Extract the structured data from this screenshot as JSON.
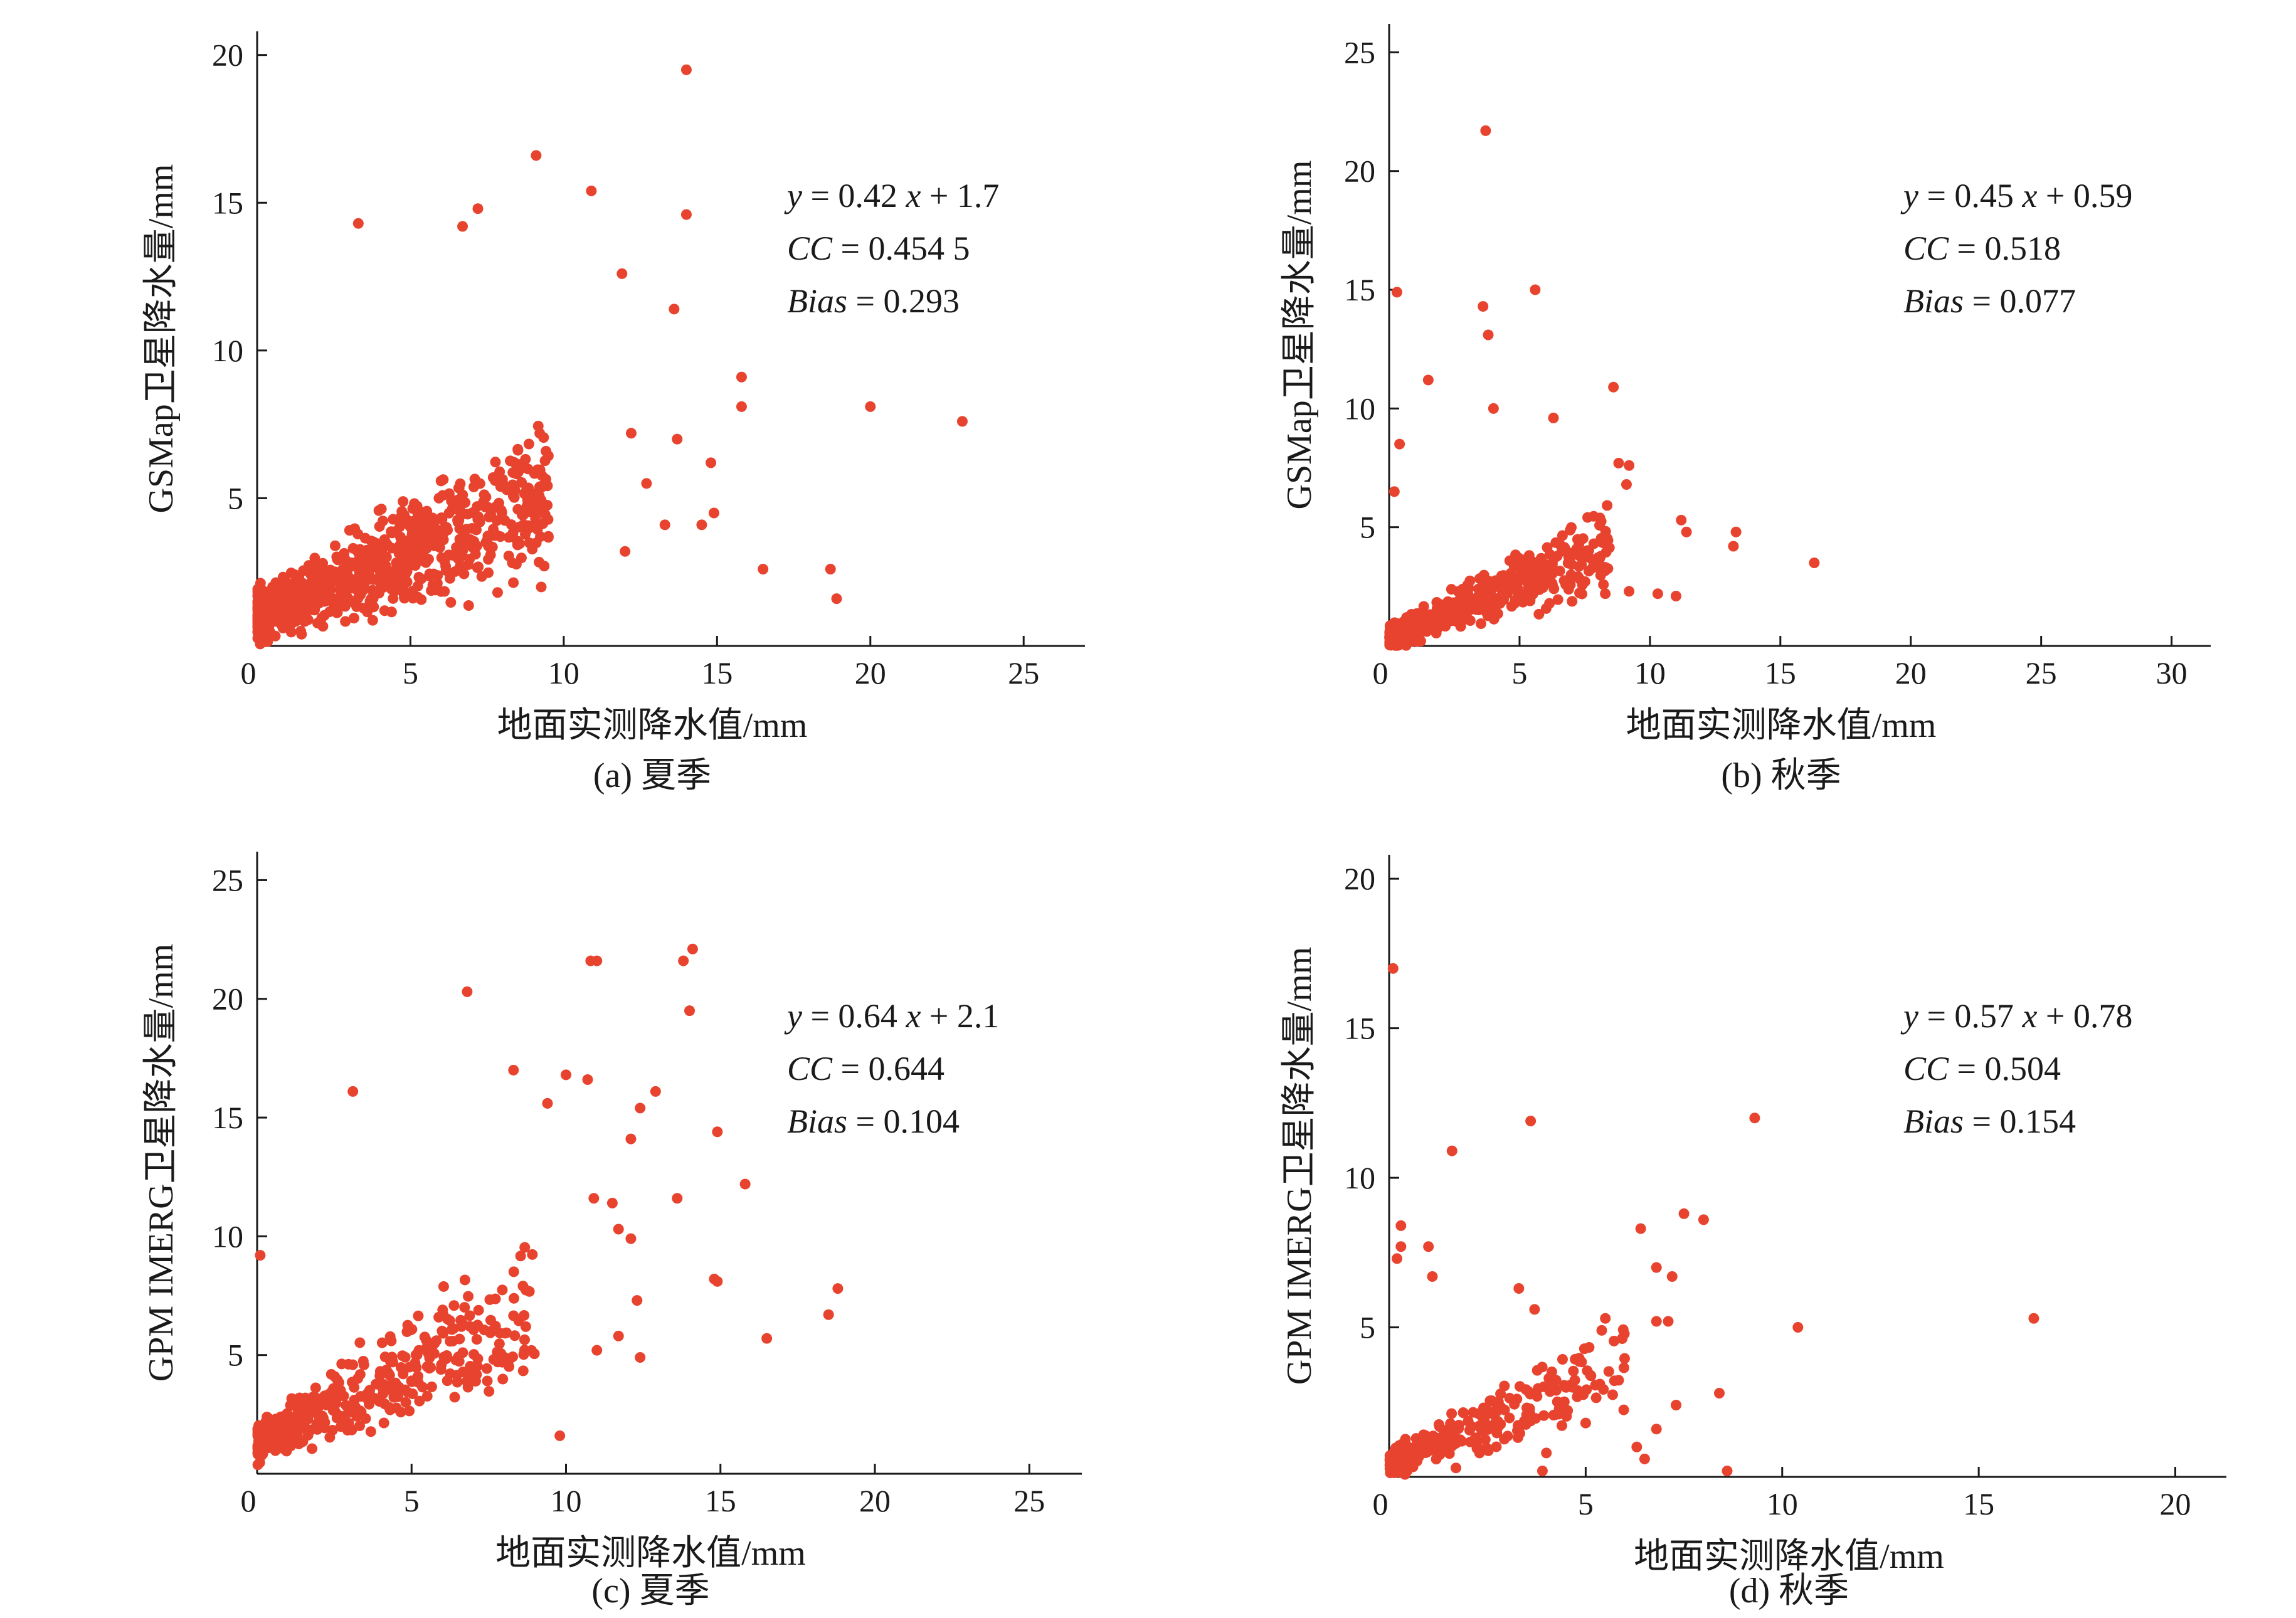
{
  "colors": {
    "points": "#e8432e",
    "axes": "#1a1a1a"
  },
  "chart_data": [
    {
      "type": "scatter",
      "caption": "(a) 夏季",
      "xlabel": "地面实测降水值/mm",
      "ylabel": "GSMap卫星降水量/mm",
      "xlim": [
        0,
        27
      ],
      "ylim": [
        0,
        20.8
      ],
      "xticks": [
        0,
        5,
        10,
        15,
        20,
        25
      ],
      "yticks": [
        0,
        5,
        10,
        15,
        20
      ],
      "annotation": {
        "eq_y": "y",
        "eq_mid": " = 0.42 ",
        "eq_x": "x",
        "eq_tail": " + 1.7",
        "cc_label": "CC",
        "cc_value": " = 0.454 5",
        "bias_label": "Bias",
        "bias_value": " = 0.293"
      },
      "cluster": {
        "n": 900,
        "seed": 11,
        "slope": 0.42,
        "intercept": 1.7,
        "xmax": 9.5,
        "ymax": 11.5,
        "spread": 1.8
      },
      "points": [
        [
          14.0,
          19.5
        ],
        [
          9.1,
          16.6
        ],
        [
          10.9,
          15.4
        ],
        [
          14.0,
          14.6
        ],
        [
          7.2,
          14.8
        ],
        [
          6.7,
          14.2
        ],
        [
          3.3,
          14.3
        ],
        [
          13.6,
          11.4
        ],
        [
          11.9,
          12.6
        ],
        [
          20.0,
          8.1
        ],
        [
          23.0,
          7.6
        ],
        [
          15.8,
          9.1
        ],
        [
          15.8,
          8.1
        ],
        [
          16.5,
          2.6
        ],
        [
          18.7,
          2.6
        ],
        [
          18.9,
          1.6
        ],
        [
          14.9,
          4.5
        ],
        [
          14.8,
          6.2
        ],
        [
          14.5,
          4.1
        ],
        [
          13.3,
          4.1
        ],
        [
          12.2,
          7.2
        ],
        [
          12.0,
          3.2
        ],
        [
          13.7,
          7.0
        ],
        [
          12.7,
          5.5
        ]
      ]
    },
    {
      "type": "scatter",
      "caption": "(b) 秋季",
      "xlabel": "地面实测降水值/mm",
      "ylabel": "GSMap卫星降水量/mm",
      "xlim": [
        0,
        31.5
      ],
      "ylim": [
        0,
        26.2
      ],
      "xticks": [
        0,
        5,
        10,
        15,
        20,
        25,
        30
      ],
      "yticks": [
        0,
        5,
        10,
        15,
        20,
        25
      ],
      "annotation": {
        "eq_y": "y",
        "eq_mid": " = 0.45 ",
        "eq_x": "x",
        "eq_tail": " + 0.59",
        "cc_label": "CC",
        "cc_value": " = 0.518",
        "bias_label": "Bias",
        "bias_value": " = 0.077"
      },
      "cluster": {
        "n": 500,
        "seed": 23,
        "slope": 0.45,
        "intercept": 0.59,
        "xmax": 8.5,
        "ymax": 8.5,
        "spread": 1.2
      },
      "points": [
        [
          3.7,
          21.7
        ],
        [
          0.3,
          14.9
        ],
        [
          3.6,
          14.3
        ],
        [
          3.8,
          13.1
        ],
        [
          5.6,
          15.0
        ],
        [
          0.4,
          8.5
        ],
        [
          1.5,
          11.2
        ],
        [
          4.0,
          10.0
        ],
        [
          6.3,
          9.6
        ],
        [
          8.6,
          10.9
        ],
        [
          8.8,
          7.7
        ],
        [
          9.2,
          7.6
        ],
        [
          9.1,
          6.8
        ],
        [
          11.2,
          5.3
        ],
        [
          11.4,
          4.8
        ],
        [
          13.3,
          4.8
        ],
        [
          13.2,
          4.2
        ],
        [
          16.3,
          3.5
        ],
        [
          10.3,
          2.2
        ],
        [
          11.0,
          2.1
        ],
        [
          9.2,
          2.3
        ],
        [
          0.2,
          6.5
        ]
      ]
    },
    {
      "type": "scatter",
      "caption": "(c) 夏季",
      "xlabel": "地面实测降水值/mm",
      "ylabel": "GPM IMERG卫星降水量/mm",
      "xlim": [
        0,
        26.7
      ],
      "ylim": [
        0,
        26.2
      ],
      "xticks": [
        0,
        5,
        10,
        15,
        20,
        25
      ],
      "yticks": [
        0,
        5,
        10,
        15,
        20,
        25
      ],
      "annotation": {
        "eq_y": "y",
        "eq_mid": " = 0.64 ",
        "eq_x": "x",
        "eq_tail": " + 2.1",
        "cc_label": "CC",
        "cc_value": " = 0.644",
        "bias_label": "Bias",
        "bias_value": " = 0.104"
      },
      "cluster": {
        "n": 420,
        "seed": 37,
        "slope": 0.64,
        "intercept": 2.1,
        "xmax": 9.0,
        "ymax": 13.0,
        "spread": 2.0
      },
      "points": [
        [
          14.1,
          22.1
        ],
        [
          13.8,
          21.6
        ],
        [
          11.0,
          21.6
        ],
        [
          10.8,
          21.6
        ],
        [
          14.0,
          19.5
        ],
        [
          6.8,
          20.3
        ],
        [
          12.9,
          16.1
        ],
        [
          12.4,
          15.4
        ],
        [
          10.7,
          16.6
        ],
        [
          8.3,
          17.0
        ],
        [
          10.0,
          16.8
        ],
        [
          9.4,
          15.6
        ],
        [
          13.6,
          11.6
        ],
        [
          14.9,
          14.4
        ],
        [
          15.8,
          12.2
        ],
        [
          12.1,
          14.1
        ],
        [
          11.5,
          11.4
        ],
        [
          10.9,
          11.6
        ],
        [
          12.1,
          9.9
        ],
        [
          11.7,
          10.3
        ],
        [
          14.8,
          8.2
        ],
        [
          14.9,
          8.1
        ],
        [
          18.8,
          7.8
        ],
        [
          18.5,
          6.7
        ],
        [
          16.5,
          5.7
        ],
        [
          12.3,
          7.3
        ],
        [
          12.4,
          4.9
        ],
        [
          11.0,
          5.2
        ],
        [
          11.7,
          5.8
        ],
        [
          9.8,
          1.6
        ],
        [
          0.1,
          9.2
        ],
        [
          3.1,
          16.1
        ]
      ]
    },
    {
      "type": "scatter",
      "caption": "(d) 秋季",
      "xlabel": "地面实测降水值/mm",
      "ylabel": "GPM IMERG卫星降水量/mm",
      "xlim": [
        0,
        21.3
      ],
      "ylim": [
        0,
        20.8
      ],
      "xticks": [
        0,
        5,
        10,
        15,
        20
      ],
      "yticks": [
        0,
        5,
        10,
        15,
        20
      ],
      "annotation": {
        "eq_y": "y",
        "eq_mid": " = 0.57 ",
        "eq_x": "x",
        "eq_tail": " + 0.78",
        "cc_label": "CC",
        "cc_value": " = 0.504",
        "bias_label": "Bias",
        "bias_value": " = 0.154"
      },
      "cluster": {
        "n": 260,
        "seed": 53,
        "slope": 0.57,
        "intercept": 0.78,
        "xmax": 6.0,
        "ymax": 6.5,
        "spread": 1.1
      },
      "points": [
        [
          0.1,
          17.0
        ],
        [
          9.3,
          12.0
        ],
        [
          3.6,
          11.9
        ],
        [
          1.6,
          10.9
        ],
        [
          7.5,
          8.8
        ],
        [
          8.0,
          8.6
        ],
        [
          6.4,
          8.3
        ],
        [
          0.3,
          8.4
        ],
        [
          0.3,
          7.7
        ],
        [
          0.2,
          7.3
        ],
        [
          1.0,
          7.7
        ],
        [
          6.8,
          7.0
        ],
        [
          6.8,
          5.2
        ],
        [
          7.2,
          6.7
        ],
        [
          7.1,
          5.2
        ],
        [
          5.5,
          5.3
        ],
        [
          3.3,
          6.3
        ],
        [
          3.7,
          5.6
        ],
        [
          1.1,
          6.7
        ],
        [
          16.4,
          5.3
        ],
        [
          10.4,
          5.0
        ],
        [
          8.4,
          2.8
        ],
        [
          7.3,
          2.4
        ],
        [
          6.8,
          1.6
        ],
        [
          6.5,
          0.6
        ],
        [
          8.6,
          0.2
        ],
        [
          3.9,
          0.2
        ],
        [
          4.0,
          0.8
        ],
        [
          2.3,
          0.8
        ],
        [
          1.7,
          0.3
        ],
        [
          5.0,
          1.8
        ],
        [
          6.3,
          1.0
        ]
      ]
    }
  ]
}
